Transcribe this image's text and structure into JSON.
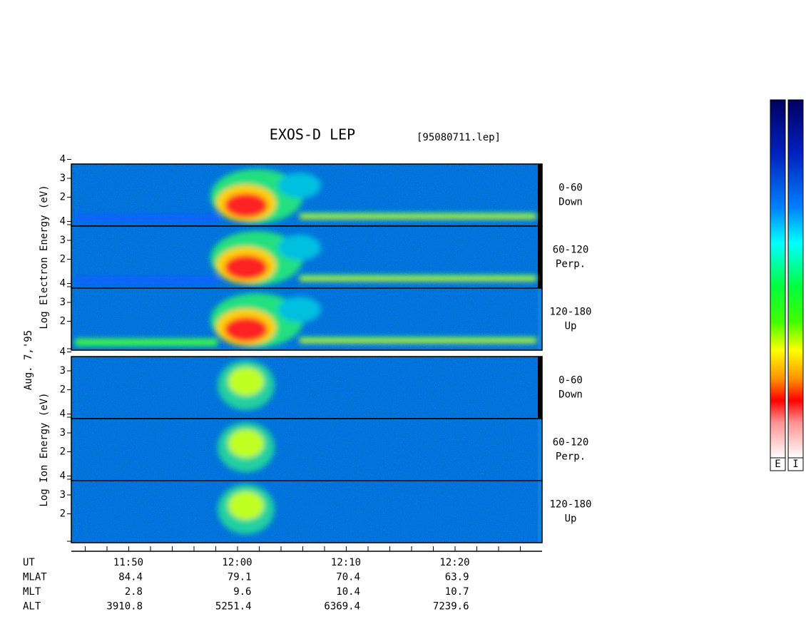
{
  "title": "EXOS-D LEP",
  "file": "[95080711.lep]",
  "date": "Aug. 7,'95",
  "groups": [
    {
      "axis_label": "Log Electron Energy (eV)",
      "panels": [
        {
          "angle": "0-60",
          "direction": "Down"
        },
        {
          "angle": "60-120",
          "direction": "Perp."
        },
        {
          "angle": "120-180",
          "direction": "Up"
        }
      ]
    },
    {
      "axis_label": "Log Ion Energy (eV)",
      "panels": [
        {
          "angle": "0-60",
          "direction": "Down"
        },
        {
          "angle": "60-120",
          "direction": "Perp."
        },
        {
          "angle": "120-180",
          "direction": "Up"
        }
      ]
    }
  ],
  "yticks": [
    2,
    3,
    4
  ],
  "rows": [
    {
      "name": "UT",
      "values": [
        "11:50",
        "12:00",
        "12:10",
        "12:20"
      ]
    },
    {
      "name": "MLAT",
      "values": [
        "84.4",
        "79.1",
        "70.4",
        "63.9"
      ]
    },
    {
      "name": "MLT",
      "values": [
        "2.8",
        "9.6",
        "10.4",
        "10.7"
      ]
    },
    {
      "name": "ALT",
      "values": [
        "3910.8",
        "5251.4",
        "6369.4",
        "7239.6"
      ]
    }
  ],
  "colorbars": [
    "E",
    "I"
  ]
}
